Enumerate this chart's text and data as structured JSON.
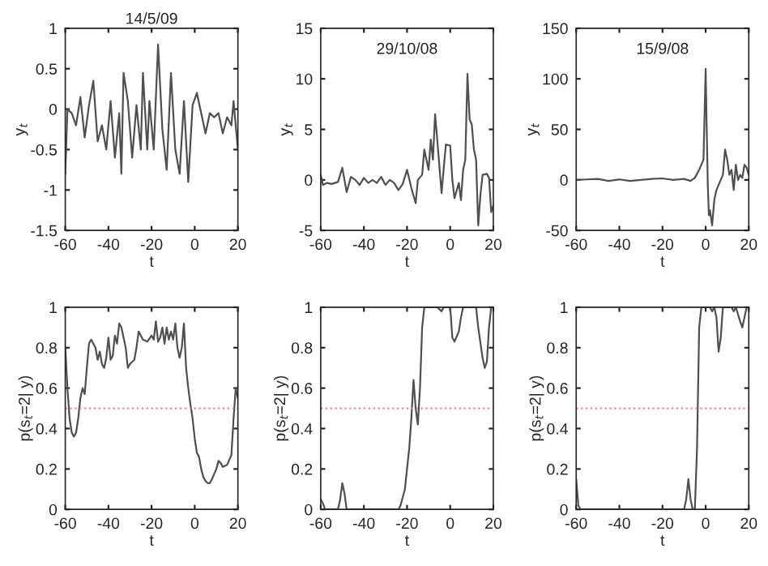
{
  "chart_data": [
    {
      "type": "line",
      "title": "14/5/09",
      "xlabel": "t",
      "ylabel": "y$_{t}$",
      "xlim": [
        -60,
        20
      ],
      "xticks": [
        -60,
        -40,
        -20,
        0,
        20
      ],
      "ylim": [
        -1.5,
        1
      ],
      "yticks": [
        -1.5,
        -1,
        -0.5,
        0,
        0.5,
        1
      ],
      "grid": false,
      "series": [
        {
          "color": "#505050",
          "x": [
            -60,
            -59,
            -57,
            -55,
            -53,
            -51,
            -49,
            -47,
            -45,
            -43,
            -41,
            -39,
            -37,
            -35,
            -34,
            -33,
            -31,
            -29,
            -27,
            -25,
            -24,
            -22,
            -21,
            -19,
            -17,
            -15,
            -13,
            -11,
            -9,
            -7,
            -5,
            -3,
            -1,
            1,
            3,
            5,
            7,
            9,
            11,
            13,
            15,
            17,
            18,
            19,
            20
          ],
          "values": [
            -0.8,
            0,
            -0.05,
            -0.2,
            0.15,
            -0.35,
            0.05,
            0.35,
            -0.4,
            -0.2,
            -0.5,
            0.1,
            -0.6,
            -0.05,
            -0.8,
            0.45,
            0.1,
            -0.6,
            0.05,
            -0.5,
            0.45,
            -0.5,
            0.1,
            -0.5,
            0.8,
            -0.25,
            -0.75,
            0.45,
            -0.5,
            -0.8,
            0.1,
            -0.9,
            0.05,
            0.2,
            -0.05,
            -0.3,
            -0.05,
            -0.1,
            -0.05,
            -0.3,
            -0.1,
            -0.2,
            0.1,
            -0.2,
            -0.5
          ]
        }
      ]
    },
    {
      "type": "line",
      "title": "29/10/08",
      "xlabel": "t",
      "ylabel": "y$_{t}$",
      "xlim": [
        -60,
        20
      ],
      "xticks": [
        -60,
        -40,
        -20,
        0,
        20
      ],
      "ylim": [
        -5,
        15
      ],
      "yticks": [
        -5,
        0,
        5,
        10,
        15
      ],
      "grid": false,
      "series": [
        {
          "color": "#505050",
          "x": [
            -60,
            -59,
            -57,
            -55,
            -52,
            -50,
            -48,
            -46,
            -44,
            -42,
            -40,
            -38,
            -36,
            -34,
            -32,
            -30,
            -28,
            -26,
            -24,
            -22,
            -20,
            -18,
            -16,
            -15,
            -13,
            -12,
            -10,
            -9,
            -8,
            -7,
            -6,
            -4,
            -2,
            0,
            1,
            2,
            4,
            5,
            6,
            7,
            8,
            9,
            10,
            11,
            12,
            13,
            14,
            15,
            17,
            18,
            19,
            20
          ],
          "values": [
            0.5,
            -0.5,
            -0.3,
            -0.4,
            -0.2,
            1.2,
            -1.2,
            0.3,
            0,
            -0.5,
            0.2,
            -0.3,
            0,
            -0.3,
            0.3,
            -0.5,
            0,
            -0.3,
            -1,
            -0.4,
            1,
            -0.8,
            -2.3,
            0,
            0.5,
            3,
            1,
            4,
            2,
            6.5,
            4,
            -1.3,
            3.5,
            3.4,
            0,
            -1.8,
            -0.3,
            -2,
            1,
            2,
            10.5,
            6,
            5.5,
            3,
            2,
            -4.5,
            -1.5,
            0.5,
            0.6,
            0.2,
            -3.2,
            -2.5
          ]
        }
      ]
    },
    {
      "type": "line",
      "title": "15/9/08",
      "xlabel": "t",
      "ylabel": "y$_{t}$",
      "xlim": [
        -60,
        20
      ],
      "xticks": [
        -60,
        -40,
        -20,
        0,
        20
      ],
      "ylim": [
        -50,
        150
      ],
      "yticks": [
        -50,
        0,
        50,
        100,
        150
      ],
      "grid": false,
      "series": [
        {
          "color": "#505050",
          "x": [
            -60,
            -55,
            -50,
            -45,
            -40,
            -35,
            -30,
            -25,
            -20,
            -15,
            -10,
            -7,
            -5,
            -3,
            -1,
            0,
            0.5,
            1,
            1.5,
            2,
            3,
            4,
            5,
            6,
            7,
            8,
            9,
            10,
            11,
            12,
            13,
            14,
            15,
            16,
            17,
            18,
            19,
            20
          ],
          "values": [
            0,
            0.5,
            1,
            -1,
            0.5,
            -1,
            0,
            1,
            1.5,
            0,
            1,
            -1,
            2,
            10,
            20,
            110,
            50,
            -5,
            -35,
            -30,
            -45,
            -20,
            -10,
            -5,
            0,
            5,
            30,
            20,
            5,
            10,
            -10,
            15,
            0,
            5,
            2,
            15,
            12,
            5
          ]
        }
      ]
    },
    {
      "type": "line",
      "xlabel": "t",
      "ylabel": "p(s$_{t}$=2| y)",
      "xlim": [
        -60,
        20
      ],
      "xticks": [
        -60,
        -40,
        -20,
        0,
        20
      ],
      "ylim": [
        0,
        1
      ],
      "yticks": [
        0,
        0.2,
        0.4,
        0.6,
        0.8,
        1
      ],
      "grid": false,
      "ref_lines": [
        {
          "axis": "y",
          "value": 0.5,
          "color": "#ff8080",
          "line_style": "dotted"
        }
      ],
      "series": [
        {
          "color": "#505050",
          "x": [
            -60,
            -59,
            -58,
            -57,
            -56,
            -55,
            -54,
            -53,
            -52,
            -51,
            -50,
            -49,
            -48,
            -46,
            -45,
            -44,
            -43,
            -42,
            -41,
            -40,
            -39,
            -38,
            -37,
            -36,
            -35,
            -34,
            -32,
            -31,
            -30,
            -28,
            -27,
            -26,
            -24,
            -22,
            -20,
            -19,
            -18,
            -17,
            -16,
            -15,
            -14,
            -13,
            -12,
            -11,
            -10,
            -9,
            -8,
            -7,
            -6,
            -5,
            -4,
            -3,
            -2,
            -1,
            0,
            1,
            2,
            3,
            4,
            5,
            6,
            7,
            8,
            10,
            11,
            12,
            13,
            15,
            17,
            18,
            19,
            20
          ],
          "values": [
            0.8,
            0.6,
            0.45,
            0.38,
            0.36,
            0.38,
            0.45,
            0.55,
            0.6,
            0.57,
            0.7,
            0.82,
            0.84,
            0.8,
            0.74,
            0.78,
            0.72,
            0.7,
            0.75,
            0.85,
            0.74,
            0.76,
            0.86,
            0.82,
            0.92,
            0.9,
            0.8,
            0.7,
            0.72,
            0.74,
            0.8,
            0.88,
            0.84,
            0.83,
            0.86,
            0.84,
            0.93,
            0.83,
            0.85,
            0.9,
            0.82,
            0.9,
            0.84,
            0.88,
            0.84,
            0.92,
            0.8,
            0.75,
            0.8,
            0.92,
            0.7,
            0.6,
            0.52,
            0.45,
            0.35,
            0.28,
            0.26,
            0.2,
            0.16,
            0.14,
            0.13,
            0.13,
            0.15,
            0.2,
            0.24,
            0.23,
            0.21,
            0.22,
            0.27,
            0.45,
            0.6,
            0.55
          ]
        }
      ]
    },
    {
      "type": "line",
      "xlabel": "t",
      "ylabel": "p(s$_{t}$=2| y)",
      "xlim": [
        -60,
        20
      ],
      "xticks": [
        -60,
        -40,
        -20,
        0,
        20
      ],
      "ylim": [
        0,
        1
      ],
      "yticks": [
        0,
        0.2,
        0.4,
        0.6,
        0.8,
        1
      ],
      "grid": false,
      "ref_lines": [
        {
          "axis": "y",
          "value": 0.5,
          "color": "#ff8080",
          "line_style": "dotted"
        }
      ],
      "series": [
        {
          "color": "#505050",
          "x": [
            -60,
            -59,
            -58,
            -52,
            -51,
            -50,
            -49,
            -48,
            -24,
            -23,
            -21,
            -19,
            -18,
            -17,
            -16,
            -15,
            -14,
            -13,
            -12,
            -6,
            -4,
            -3,
            0,
            1,
            2,
            4,
            5,
            6,
            12,
            13,
            15,
            16,
            17,
            18,
            19,
            20
          ],
          "values": [
            0.05,
            0.03,
            0,
            0,
            0.05,
            0.13,
            0.08,
            0,
            0,
            0.02,
            0.1,
            0.3,
            0.45,
            0.64,
            0.5,
            0.42,
            0.6,
            0.9,
            1,
            1,
            0.98,
            1,
            1,
            0.85,
            0.83,
            0.88,
            0.95,
            1,
            1,
            0.9,
            0.75,
            0.7,
            0.73,
            0.9,
            1,
            1
          ]
        }
      ]
    },
    {
      "type": "line",
      "xlabel": "t",
      "ylabel": "p(s$_{t}$=2| y)",
      "xlim": [
        -60,
        20
      ],
      "xticks": [
        -60,
        -40,
        -20,
        0,
        20
      ],
      "ylim": [
        0,
        1
      ],
      "yticks": [
        0,
        0.2,
        0.4,
        0.6,
        0.8,
        1
      ],
      "grid": false,
      "ref_lines": [
        {
          "axis": "y",
          "value": 0.5,
          "color": "#ff8080",
          "line_style": "dotted"
        }
      ],
      "series": [
        {
          "color": "#505050",
          "x": [
            -60,
            -59,
            -58,
            -10,
            -9,
            -8,
            -7,
            -6,
            -5,
            -4,
            -3,
            -2,
            2,
            3,
            4,
            5,
            6,
            7,
            8,
            12,
            13,
            14,
            16,
            17,
            18,
            19,
            20
          ],
          "values": [
            0.15,
            0.02,
            0,
            0,
            0.05,
            0.15,
            0.05,
            0,
            0,
            0.3,
            0.9,
            1,
            1,
            0.98,
            1,
            0.95,
            0.78,
            0.85,
            1,
            1,
            0.98,
            1,
            0.93,
            0.9,
            0.95,
            1,
            1
          ]
        }
      ]
    }
  ]
}
